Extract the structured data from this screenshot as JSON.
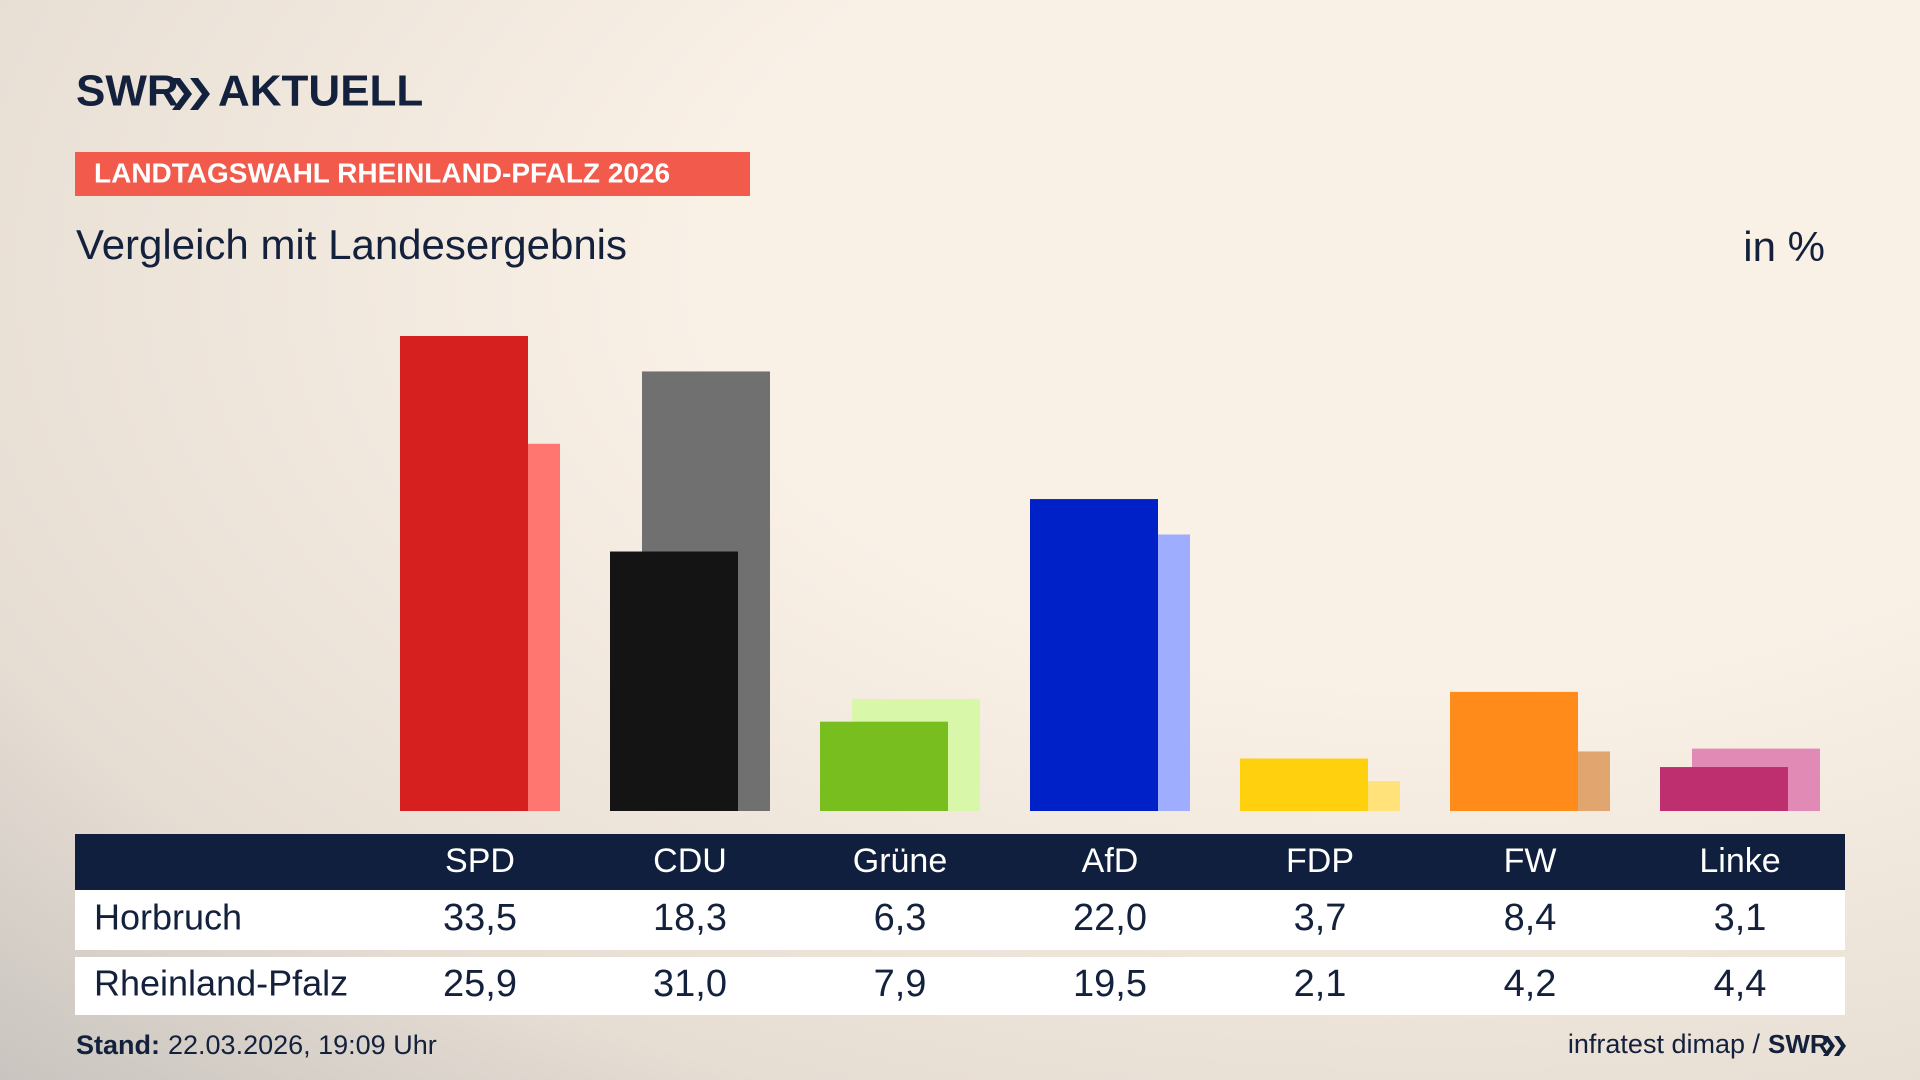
{
  "header": {
    "brand": "SWR",
    "brand_suffix": "AKTUELL",
    "kicker": "LANDTAGSWAHL RHEINLAND-PFALZ 2026"
  },
  "chart_data": {
    "type": "bar",
    "title": "Vergleich mit Landesergebnis",
    "unit_label": "in %",
    "categories": [
      "SPD",
      "CDU",
      "Grüne",
      "AfD",
      "FDP",
      "FW",
      "Linke"
    ],
    "series": [
      {
        "name": "Horbruch",
        "colors": [
          "#d62020",
          "#141414",
          "#78be1e",
          "#0021c8",
          "#ffd00e",
          "#ff8c1a",
          "#bd2f6e"
        ],
        "values": [
          33.5,
          18.3,
          6.3,
          22.0,
          3.7,
          8.4,
          3.1
        ],
        "value_labels": [
          "33,5",
          "18,3",
          "6,3",
          "22,0",
          "3,7",
          "8,4",
          "3,1"
        ]
      },
      {
        "name": "Rheinland-Pfalz",
        "colors": [
          "#ff7570",
          "#717070",
          "#d8f7a8",
          "#9fadff",
          "#ffe27a",
          "#e1a670",
          "#e08ab5"
        ],
        "values": [
          25.9,
          31.0,
          7.9,
          19.5,
          2.1,
          4.2,
          4.4
        ],
        "value_labels": [
          "25,9",
          "31,0",
          "7,9",
          "19,5",
          "2,1",
          "4,2",
          "4,4"
        ]
      }
    ]
  },
  "footer": {
    "label": "Stand:",
    "date": "22.03.2026, 19:09 Uhr",
    "source": "infratest dimap /",
    "source_brand": "SWR"
  }
}
